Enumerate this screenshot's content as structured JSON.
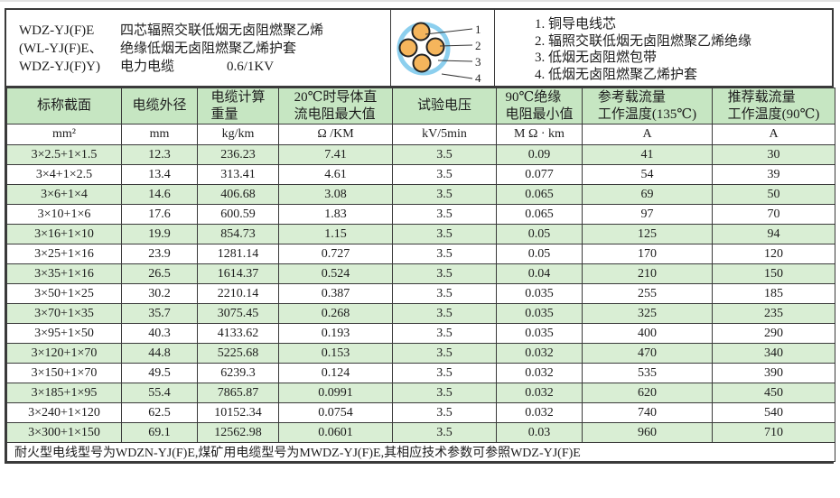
{
  "colors": {
    "border": "#3a3a3a",
    "text": "#1c1c1c",
    "header_green": "#c6e6c2",
    "row_green": "#d9eed4",
    "row_white": "#ffffff",
    "sheath_blue": "#8ccfee",
    "conductor_orange": "#f5b55c"
  },
  "info": {
    "models": [
      "WDZ-YJ(F)E",
      "(WL-YJ(F)E、",
      "WDZ-YJ(F)Y)"
    ],
    "desc_line1": "四芯辐照交联低烟无卤阻燃聚乙烯",
    "desc_line2": "绝缘低烟无卤阻燃聚乙烯护套",
    "desc_line3": "电力电缆",
    "voltage": "0.6/1KV",
    "diagram": {
      "labels": [
        "1",
        "2",
        "3",
        "4"
      ]
    },
    "notes": [
      "1. 铜导电线芯",
      "2. 辐照交联低烟无卤阻燃聚乙烯绝缘",
      "3. 低烟无卤阻燃包带",
      "4. 低烟无卤阻燃聚乙烯护套"
    ]
  },
  "table": {
    "headers": [
      "标称截面",
      "电缆外径",
      "电缆计算\n重量",
      "20℃时导体直\n流电阻最大值",
      "试验电压",
      "90℃绝缘\n电阻最小值",
      "参考载流量\n工作温度(135℃)",
      "推荐载流量\n工作温度(90℃)"
    ],
    "units": [
      "mm²",
      "mm",
      "kg/km",
      "Ω /KM",
      "kV/5min",
      "M Ω · km",
      "A",
      "A"
    ],
    "rows": [
      [
        "3×2.5+1×1.5",
        "12.3",
        "236.23",
        "7.41",
        "3.5",
        "0.09",
        "41",
        "30"
      ],
      [
        "3×4+1×2.5",
        "13.4",
        "313.41",
        "4.61",
        "3.5",
        "0.077",
        "54",
        "39"
      ],
      [
        "3×6+1×4",
        "14.6",
        "406.68",
        "3.08",
        "3.5",
        "0.065",
        "69",
        "50"
      ],
      [
        "3×10+1×6",
        "17.6",
        "600.59",
        "1.83",
        "3.5",
        "0.065",
        "97",
        "70"
      ],
      [
        "3×16+1×10",
        "19.9",
        "854.73",
        "1.15",
        "3.5",
        "0.05",
        "125",
        "94"
      ],
      [
        "3×25+1×16",
        "23.9",
        "1281.14",
        "0.727",
        "3.5",
        "0.05",
        "170",
        "120"
      ],
      [
        "3×35+1×16",
        "26.5",
        "1614.37",
        "0.524",
        "3.5",
        "0.04",
        "210",
        "150"
      ],
      [
        "3×50+1×25",
        "30.2",
        "2210.14",
        "0.387",
        "3.5",
        "0.035",
        "255",
        "185"
      ],
      [
        "3×70+1×35",
        "35.7",
        "3075.45",
        "0.268",
        "3.5",
        "0.035",
        "325",
        "235"
      ],
      [
        "3×95+1×50",
        "40.3",
        "4133.62",
        "0.193",
        "3.5",
        "0.035",
        "400",
        "290"
      ],
      [
        "3×120+1×70",
        "44.8",
        "5225.68",
        "0.153",
        "3.5",
        "0.032",
        "470",
        "340"
      ],
      [
        "3×150+1×70",
        "49.5",
        "6239.3",
        "0.124",
        "3.5",
        "0.032",
        "535",
        "390"
      ],
      [
        "3×185+1×95",
        "55.4",
        "7865.87",
        "0.0991",
        "3.5",
        "0.032",
        "620",
        "450"
      ],
      [
        "3×240+1×120",
        "62.5",
        "10152.34",
        "0.0754",
        "3.5",
        "0.032",
        "740",
        "540"
      ],
      [
        "3×300+1×150",
        "69.1",
        "12562.98",
        "0.0601",
        "3.5",
        "0.03",
        "960",
        "710"
      ]
    ],
    "footer": "耐火型电线型号为WDZN-YJ(F)E,煤矿用电缆型号为MWDZ-YJ(F)E,其相应技术参数可参照WDZ-YJ(F)E"
  }
}
